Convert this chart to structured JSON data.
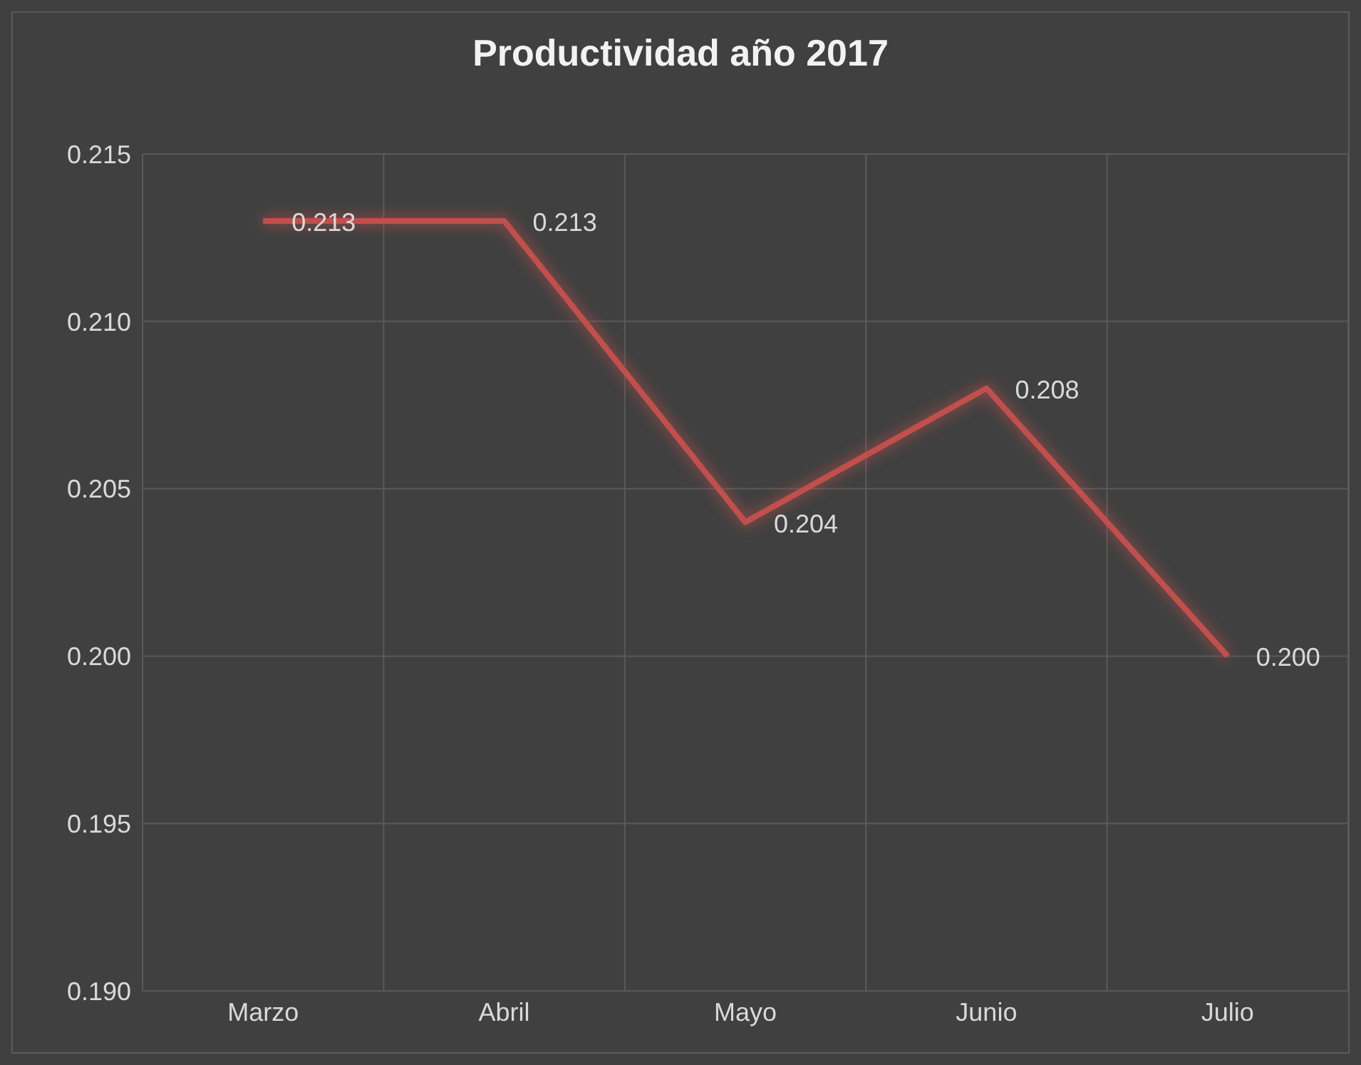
{
  "chart_data": {
    "type": "line",
    "title": "Productividad año 2017",
    "categories": [
      "Marzo",
      "Abril",
      "Mayo",
      "Junio",
      "Julio"
    ],
    "series": [
      {
        "color": "#c0504d",
        "values": [
          0.213,
          0.213,
          0.204,
          0.208,
          0.2
        ],
        "value_labels": [
          "0.213",
          "0.213",
          "0.204",
          "0.208",
          "0.200"
        ]
      }
    ],
    "ylim": [
      0.19,
      0.215
    ],
    "yticks": [
      {
        "value": 0.19,
        "label": "0.190"
      },
      {
        "value": 0.195,
        "label": "0.195"
      },
      {
        "value": 0.2,
        "label": "0.200"
      },
      {
        "value": 0.205,
        "label": "0.205"
      },
      {
        "value": 0.21,
        "label": "0.210"
      },
      {
        "value": 0.215,
        "label": "0.215"
      }
    ],
    "grid": true,
    "marker": "none",
    "line_style": "solid"
  }
}
